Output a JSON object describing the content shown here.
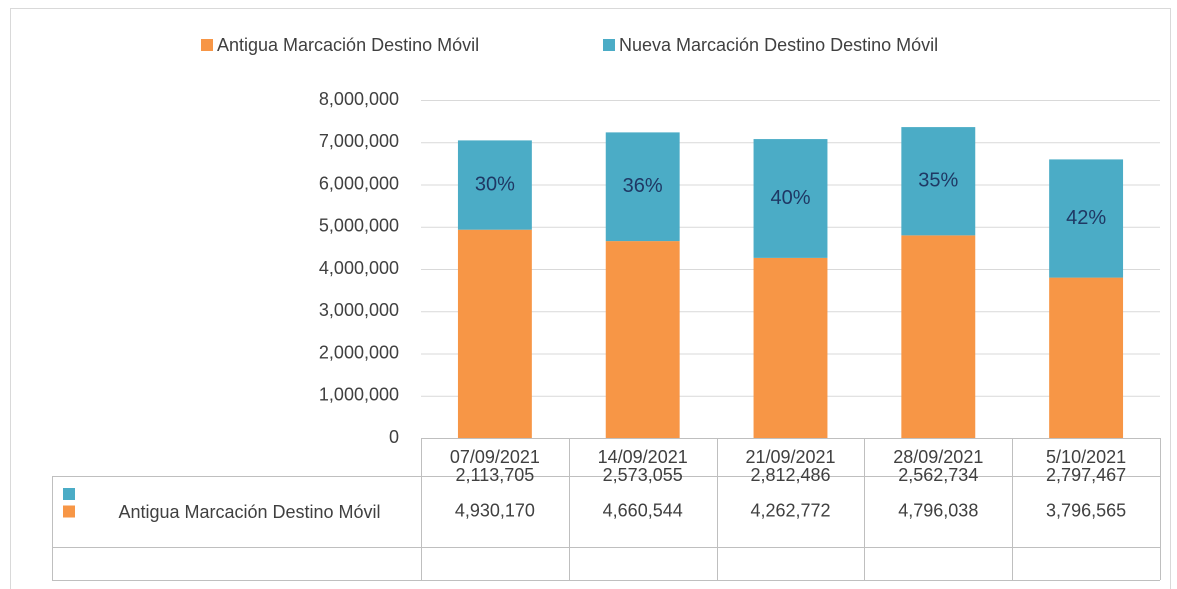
{
  "chart_data": {
    "type": "stacked_bar",
    "categories": [
      "07/09/2021",
      "14/09/2021",
      "21/09/2021",
      "28/09/2021",
      "5/10/2021"
    ],
    "series": [
      {
        "name": "Antigua Marcación Destino Móvil",
        "color": "#f79646",
        "values": [
          4930170,
          4660544,
          4262772,
          4796038,
          3796565
        ],
        "value_labels": [
          "4,930,170",
          "4,660,544",
          "4,262,772",
          "4,796,038",
          "3,796,565"
        ]
      },
      {
        "name": "Nueva Marcación Destino Destino Móvil",
        "color": "#4bacc6",
        "values": [
          2113705,
          2573055,
          2812486,
          2562734,
          2797467
        ],
        "value_labels": [
          "2,113,705",
          "2,573,055",
          "2,812,486",
          "2,562,734",
          "2,797,467"
        ],
        "share_labels": [
          "30%",
          "36%",
          "40%",
          "35%",
          "42%"
        ]
      }
    ],
    "ylim": [
      0,
      8000000
    ],
    "yticks": [
      0,
      {
        "value": 1000000,
        "label": "1,000,000"
      },
      {
        "value": 2000000,
        "label": "2,000,000"
      },
      {
        "value": 3000000,
        "label": "3,000,000"
      },
      {
        "value": 4000000,
        "label": "4,000,000"
      },
      {
        "value": 5000000,
        "label": "5,000,000"
      },
      {
        "value": 6000000,
        "label": "6,000,000"
      },
      {
        "value": 7000000,
        "label": "7,000,000"
      },
      {
        "value": 8000000,
        "label": "8,000,000"
      }
    ],
    "grid": true,
    "legend": "top"
  }
}
